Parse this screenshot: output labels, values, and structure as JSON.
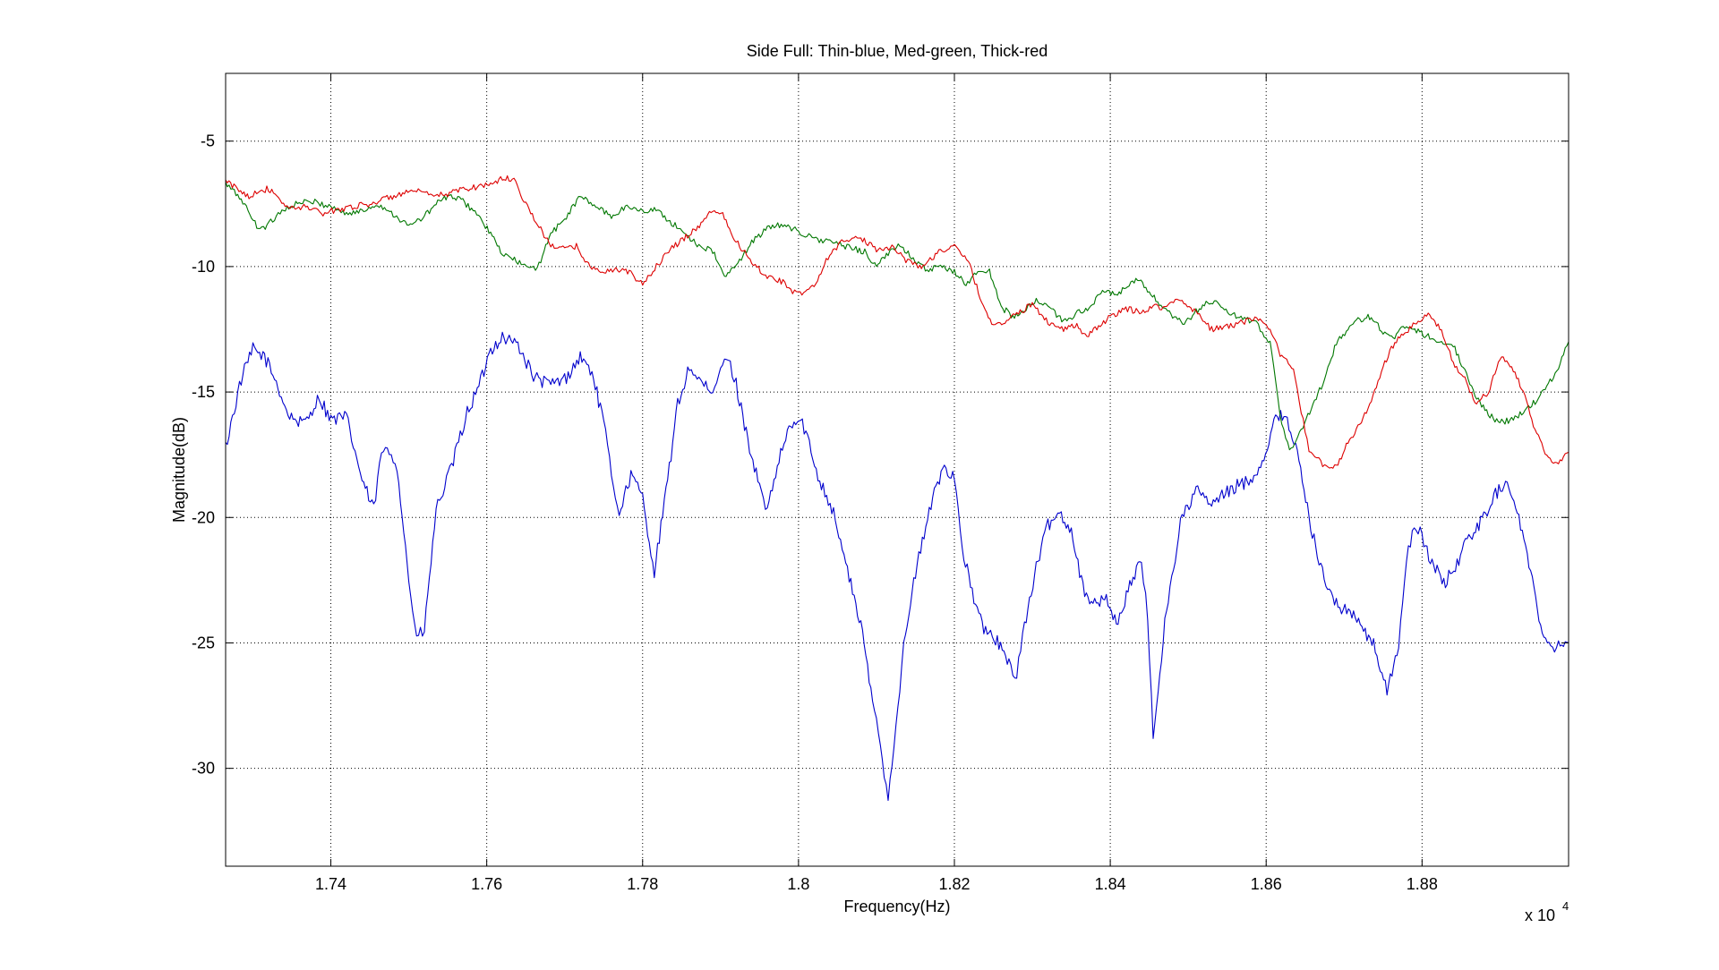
{
  "figure": {
    "background": "#ffffff"
  },
  "chart_data": {
    "type": "line",
    "title": "Side Full: Thin-blue, Med-green, Thick-red",
    "xlabel": "Frequency(Hz)",
    "ylabel": "Magnitude(dB)",
    "x_exponent_label": "x 10",
    "x_exponent_power": "4",
    "xlim": [
      1.7265,
      1.8988
    ],
    "ylim": [
      -33.9,
      -2.3
    ],
    "xticks": [
      1.74,
      1.76,
      1.78,
      1.8,
      1.82,
      1.84,
      1.86,
      1.88
    ],
    "xtick_labels": [
      "1.74",
      "1.76",
      "1.78",
      "1.8",
      "1.82",
      "1.84",
      "1.86",
      "1.88"
    ],
    "yticks": [
      -30,
      -25,
      -20,
      -15,
      -10,
      -5
    ],
    "ytick_labels": [
      "-30",
      "-25",
      "-20",
      "-15",
      "-10",
      "-5"
    ],
    "grid": true,
    "grid_style": "dotted",
    "series": [
      {
        "color": "#0000cc",
        "x": [
          1.7265,
          1.7285,
          1.73,
          1.7315,
          1.733,
          1.7345,
          1.7365,
          1.7385,
          1.74,
          1.742,
          1.744,
          1.7455,
          1.7465,
          1.7475,
          1.7485,
          1.75,
          1.751,
          1.752,
          1.7535,
          1.7555,
          1.7575,
          1.759,
          1.7605,
          1.762,
          1.764,
          1.766,
          1.768,
          1.77,
          1.772,
          1.7735,
          1.775,
          1.776,
          1.777,
          1.7785,
          1.78,
          1.7815,
          1.783,
          1.7845,
          1.786,
          1.787,
          1.789,
          1.79,
          1.791,
          1.792,
          1.7935,
          1.795,
          1.796,
          1.7975,
          1.799,
          1.8005,
          1.8025,
          1.8045,
          1.8065,
          1.808,
          1.8095,
          1.8105,
          1.8115,
          1.8125,
          1.8135,
          1.815,
          1.817,
          1.8185,
          1.82,
          1.821,
          1.8225,
          1.824,
          1.8255,
          1.827,
          1.828,
          1.829,
          1.8305,
          1.832,
          1.8335,
          1.835,
          1.8365,
          1.838,
          1.8395,
          1.841,
          1.8425,
          1.844,
          1.8448,
          1.8455,
          1.847,
          1.849,
          1.851,
          1.853,
          1.855,
          1.8565,
          1.858,
          1.8595,
          1.861,
          1.8625,
          1.864,
          1.8655,
          1.867,
          1.869,
          1.871,
          1.8725,
          1.874,
          1.8755,
          1.877,
          1.878,
          1.879,
          1.88,
          1.8815,
          1.883,
          1.8845,
          1.886,
          1.8875,
          1.889,
          1.8905,
          1.892,
          1.8935,
          1.895,
          1.8965,
          1.8975,
          1.8988
        ],
        "values": [
          -17.2,
          -14.5,
          -13.3,
          -13.6,
          -14.6,
          -15.9,
          -16.3,
          -15.2,
          -16.1,
          -16.0,
          -18.5,
          -19.7,
          -17.4,
          -17.4,
          -17.9,
          -22.5,
          -24.8,
          -24.5,
          -19.7,
          -18.0,
          -15.8,
          -14.8,
          -13.3,
          -12.8,
          -13.1,
          -14.4,
          -14.7,
          -14.5,
          -13.6,
          -14.2,
          -16.2,
          -18.3,
          -19.8,
          -18.3,
          -19.2,
          -22.2,
          -19.0,
          -15.5,
          -14.0,
          -14.4,
          -15.2,
          -14.0,
          -13.7,
          -14.7,
          -16.9,
          -18.8,
          -19.8,
          -17.7,
          -16.3,
          -16.2,
          -18.3,
          -19.8,
          -22.4,
          -24.3,
          -27.3,
          -29.0,
          -31.2,
          -28.2,
          -25.2,
          -22.2,
          -19.5,
          -18.0,
          -18.3,
          -21.2,
          -23.3,
          -24.6,
          -24.9,
          -25.9,
          -26.2,
          -24.3,
          -22.0,
          -20.3,
          -19.8,
          -20.5,
          -22.8,
          -23.5,
          -23.2,
          -24.3,
          -22.6,
          -21.8,
          -24.0,
          -28.8,
          -24.2,
          -20.2,
          -18.9,
          -19.5,
          -19.0,
          -18.7,
          -18.5,
          -17.8,
          -16.2,
          -15.8,
          -17.5,
          -20.0,
          -22.0,
          -23.5,
          -23.8,
          -24.5,
          -25.2,
          -27.0,
          -25.0,
          -21.8,
          -20.2,
          -20.8,
          -22.0,
          -22.6,
          -21.8,
          -20.8,
          -20.2,
          -19.3,
          -18.6,
          -19.4,
          -21.5,
          -24.0,
          -25.2,
          -25.0,
          -25.0
        ]
      },
      {
        "color": "#007700",
        "x": [
          1.7265,
          1.7285,
          1.7305,
          1.7318,
          1.7335,
          1.7355,
          1.7375,
          1.74,
          1.742,
          1.744,
          1.746,
          1.748,
          1.75,
          1.752,
          1.7535,
          1.755,
          1.7565,
          1.7585,
          1.7605,
          1.762,
          1.764,
          1.7655,
          1.7665,
          1.768,
          1.77,
          1.772,
          1.774,
          1.776,
          1.778,
          1.78,
          1.7815,
          1.7835,
          1.7855,
          1.787,
          1.789,
          1.7905,
          1.792,
          1.794,
          1.796,
          1.798,
          1.8,
          1.802,
          1.804,
          1.806,
          1.8085,
          1.81,
          1.8115,
          1.813,
          1.8145,
          1.8165,
          1.818,
          1.82,
          1.8215,
          1.823,
          1.8245,
          1.826,
          1.8275,
          1.829,
          1.8305,
          1.832,
          1.834,
          1.836,
          1.8375,
          1.839,
          1.8405,
          1.842,
          1.8435,
          1.845,
          1.8465,
          1.848,
          1.8495,
          1.851,
          1.8525,
          1.854,
          1.8555,
          1.857,
          1.8585,
          1.8595,
          1.8605,
          1.8612,
          1.862,
          1.863,
          1.8645,
          1.866,
          1.8675,
          1.869,
          1.8705,
          1.872,
          1.8735,
          1.875,
          1.8765,
          1.878,
          1.8795,
          1.881,
          1.8825,
          1.884,
          1.8855,
          1.887,
          1.8885,
          1.89,
          1.8915,
          1.893,
          1.8945,
          1.896,
          1.8975,
          1.8988
        ],
        "values": [
          -6.7,
          -7.3,
          -8.4,
          -8.4,
          -7.8,
          -7.5,
          -7.4,
          -7.6,
          -7.9,
          -7.8,
          -7.5,
          -7.9,
          -8.4,
          -8.0,
          -7.5,
          -7.2,
          -7.3,
          -7.8,
          -8.7,
          -9.5,
          -9.8,
          -10.1,
          -10.1,
          -8.8,
          -8.1,
          -7.2,
          -7.6,
          -8.0,
          -7.6,
          -7.8,
          -7.7,
          -8.2,
          -8.7,
          -9.1,
          -9.4,
          -10.4,
          -10.0,
          -9.0,
          -8.5,
          -8.3,
          -8.6,
          -8.9,
          -9.0,
          -9.2,
          -9.4,
          -10.0,
          -9.5,
          -9.1,
          -9.6,
          -10.2,
          -10.0,
          -10.2,
          -10.7,
          -10.2,
          -10.2,
          -11.6,
          -12.0,
          -11.8,
          -11.3,
          -11.6,
          -12.2,
          -11.8,
          -11.6,
          -11.0,
          -11.1,
          -10.9,
          -10.5,
          -11.0,
          -11.6,
          -12.0,
          -12.3,
          -11.8,
          -11.4,
          -11.5,
          -11.9,
          -12.1,
          -12.2,
          -12.6,
          -13.0,
          -14.5,
          -16.3,
          -17.3,
          -16.6,
          -15.5,
          -14.5,
          -13.0,
          -12.5,
          -12.1,
          -12.0,
          -12.6,
          -12.8,
          -12.3,
          -12.6,
          -12.8,
          -13.0,
          -13.1,
          -14.2,
          -15.2,
          -15.9,
          -16.2,
          -16.1,
          -15.8,
          -15.4,
          -14.8,
          -14.0,
          -13.0
        ]
      },
      {
        "color": "#dd0000",
        "x": [
          1.7265,
          1.728,
          1.7295,
          1.7305,
          1.732,
          1.7335,
          1.735,
          1.737,
          1.739,
          1.741,
          1.743,
          1.745,
          1.747,
          1.749,
          1.751,
          1.753,
          1.755,
          1.757,
          1.759,
          1.7605,
          1.762,
          1.7635,
          1.765,
          1.7665,
          1.768,
          1.77,
          1.7715,
          1.7735,
          1.7755,
          1.777,
          1.7785,
          1.78,
          1.782,
          1.784,
          1.786,
          1.7875,
          1.789,
          1.7905,
          1.792,
          1.794,
          1.796,
          1.798,
          1.799,
          1.8,
          1.802,
          1.804,
          1.806,
          1.808,
          1.81,
          1.812,
          1.814,
          1.816,
          1.818,
          1.82,
          1.822,
          1.8235,
          1.825,
          1.8265,
          1.828,
          1.83,
          1.832,
          1.834,
          1.8355,
          1.837,
          1.8385,
          1.84,
          1.842,
          1.844,
          1.8455,
          1.847,
          1.849,
          1.851,
          1.853,
          1.855,
          1.857,
          1.859,
          1.8605,
          1.862,
          1.8635,
          1.8645,
          1.8655,
          1.8665,
          1.8675,
          1.869,
          1.8705,
          1.872,
          1.8735,
          1.875,
          1.8765,
          1.878,
          1.8795,
          1.881,
          1.8825,
          1.884,
          1.8855,
          1.887,
          1.8885,
          1.89,
          1.8915,
          1.893,
          1.8945,
          1.896,
          1.8975,
          1.8988
        ],
        "values": [
          -6.6,
          -6.9,
          -7.2,
          -7.0,
          -6.9,
          -7.4,
          -7.7,
          -7.6,
          -7.9,
          -7.7,
          -7.6,
          -7.5,
          -7.3,
          -7.1,
          -7.0,
          -7.2,
          -7.1,
          -6.9,
          -6.8,
          -6.7,
          -6.5,
          -6.5,
          -7.5,
          -8.3,
          -9.1,
          -9.3,
          -9.2,
          -10.1,
          -10.2,
          -10.1,
          -10.3,
          -10.7,
          -9.9,
          -9.2,
          -8.7,
          -8.3,
          -7.7,
          -8.0,
          -9.0,
          -9.8,
          -10.4,
          -10.6,
          -11.0,
          -11.1,
          -10.8,
          -9.5,
          -8.9,
          -8.9,
          -9.3,
          -9.2,
          -9.8,
          -10.0,
          -9.4,
          -9.2,
          -9.9,
          -11.5,
          -12.3,
          -12.2,
          -11.9,
          -11.5,
          -12.2,
          -12.5,
          -12.3,
          -12.8,
          -12.4,
          -12.0,
          -11.7,
          -11.8,
          -11.6,
          -11.6,
          -11.3,
          -11.8,
          -12.5,
          -12.4,
          -12.2,
          -12.1,
          -12.6,
          -13.6,
          -14.0,
          -15.8,
          -17.3,
          -17.6,
          -18.0,
          -18.0,
          -17.0,
          -16.3,
          -15.4,
          -14.0,
          -13.0,
          -12.6,
          -12.2,
          -11.9,
          -12.6,
          -13.8,
          -14.5,
          -15.5,
          -15.0,
          -13.6,
          -14.0,
          -15.0,
          -16.5,
          -17.6,
          -17.8,
          -17.4
        ]
      }
    ]
  }
}
